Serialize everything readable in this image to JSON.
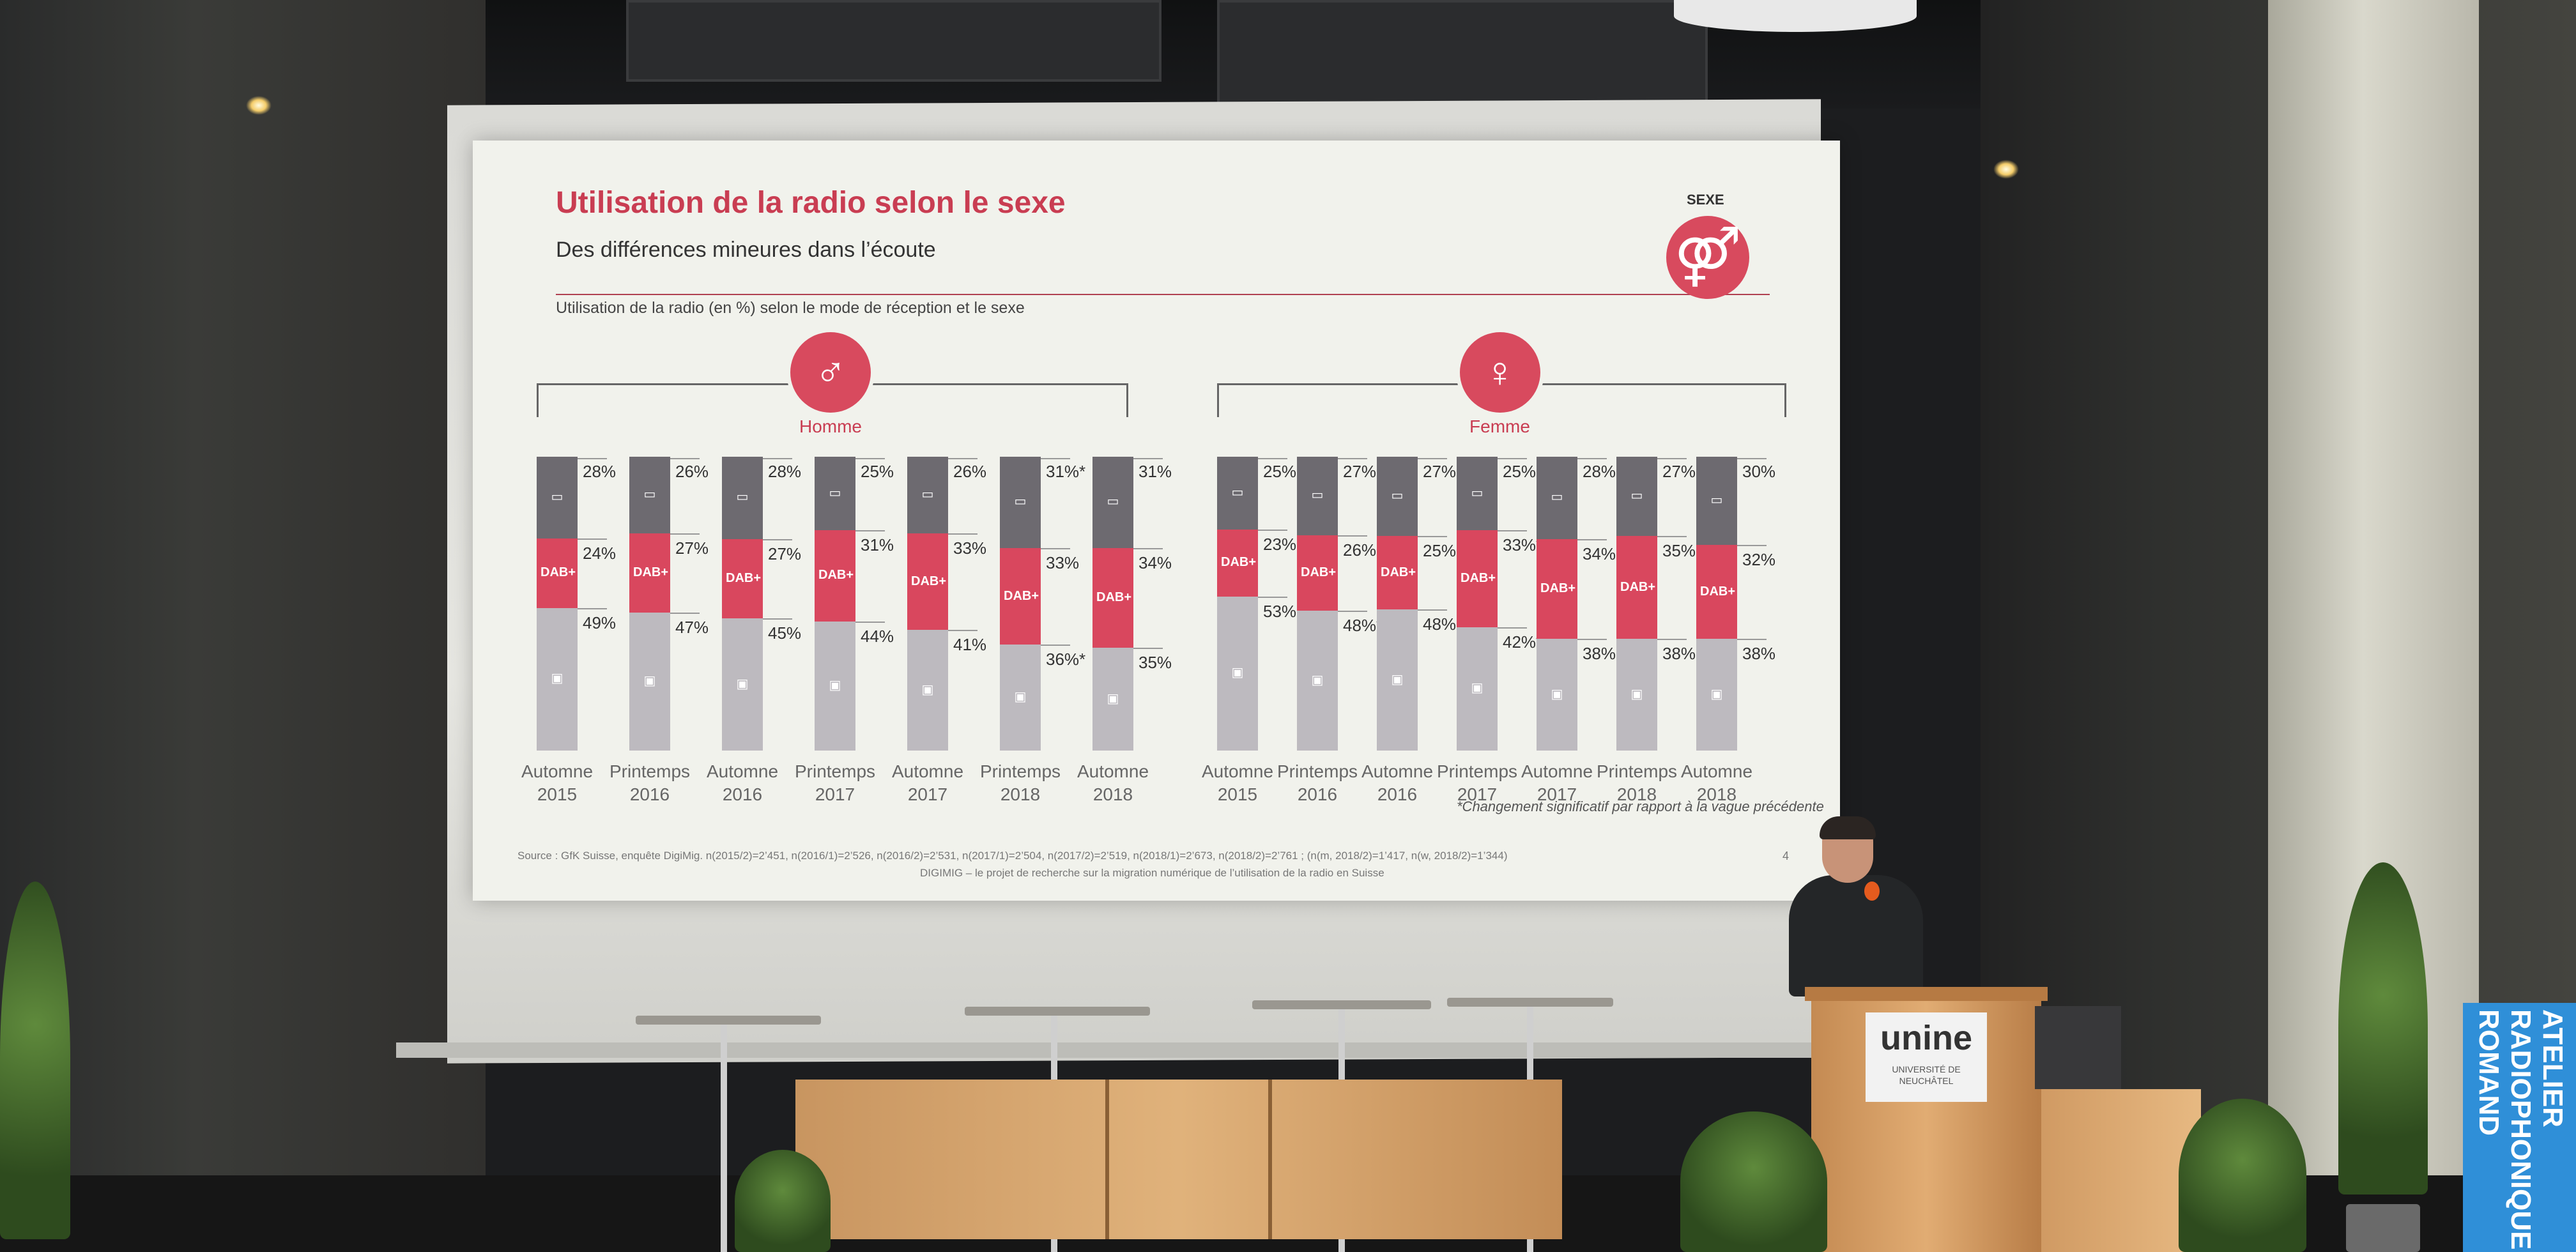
{
  "slide": {
    "title": "Utilisation de la radio selon le sexe",
    "subtitle": "Des différences mineures dans l’écoute",
    "caption": "Utilisation de la radio (en %) selon le mode de réception et le sexe",
    "sexe_label": "SEXE",
    "sexe_icon": "⚤",
    "footnote": "*Changement significatif par rapport à la vague précédente",
    "source": "Source : GfK Suisse, enquête DigiMig. n(2015/2)=2’451, n(2016/1)=2’526, n(2016/2)=2’531, n(2017/1)=2’504, n(2017/2)=2’519, n(2018/1)=2’673, n(2018/2)=2’761 ; (n(m, 2018/2)=1’417, n(w, 2018/2)=1’344)",
    "digimig": "DIGIMIG – le projet de recherche sur la migration numérique de l’utilisation de la radio en Suisse",
    "page_number": "4",
    "segment_labels": {
      "internet": "Internet/Digital",
      "dab": "DAB+",
      "analog": "Analog/UKW"
    },
    "colors": {
      "accent": "#c93d52",
      "internet": "#6d6a70",
      "dab": "#d9475e",
      "analog": "#bdbabf"
    }
  },
  "groups": [
    {
      "label": "Homme",
      "icon": "man-icon",
      "glyph": "♂",
      "bars": [
        {
          "cat1": "Automne",
          "cat2": "2015",
          "internet": "28%",
          "dab": "24%",
          "analog": "49%",
          "v": [
            28,
            24,
            49
          ]
        },
        {
          "cat1": "Printemps",
          "cat2": "2016",
          "internet": "26%",
          "dab": "27%",
          "analog": "47%",
          "v": [
            26,
            27,
            47
          ]
        },
        {
          "cat1": "Automne",
          "cat2": "2016",
          "internet": "28%",
          "dab": "27%",
          "analog": "45%",
          "v": [
            28,
            27,
            45
          ]
        },
        {
          "cat1": "Printemps",
          "cat2": "2017",
          "internet": "25%",
          "dab": "31%",
          "analog": "44%",
          "v": [
            25,
            31,
            44
          ]
        },
        {
          "cat1": "Automne",
          "cat2": "2017",
          "internet": "26%",
          "dab": "33%",
          "analog": "41%",
          "v": [
            26,
            33,
            41
          ]
        },
        {
          "cat1": "Printemps",
          "cat2": "2018",
          "internet": "31%*",
          "dab": "33%",
          "analog": "36%*",
          "v": [
            31,
            33,
            36
          ]
        },
        {
          "cat1": "Automne",
          "cat2": "2018",
          "internet": "31%",
          "dab": "34%",
          "analog": "35%",
          "v": [
            31,
            34,
            35
          ]
        }
      ]
    },
    {
      "label": "Femme",
      "icon": "woman-icon",
      "glyph": "♀",
      "bars": [
        {
          "cat1": "Automne",
          "cat2": "2015",
          "internet": "25%",
          "dab": "23%",
          "analog": "53%",
          "v": [
            25,
            23,
            53
          ]
        },
        {
          "cat1": "Printemps",
          "cat2": "2016",
          "internet": "27%",
          "dab": "26%",
          "analog": "48%*",
          "v": [
            27,
            26,
            48
          ]
        },
        {
          "cat1": "Automne",
          "cat2": "2016",
          "internet": "27%",
          "dab": "25%",
          "analog": "48%",
          "v": [
            27,
            25,
            48
          ]
        },
        {
          "cat1": "Printemps",
          "cat2": "2017",
          "internet": "25%",
          "dab": "33%*",
          "analog": "42%*",
          "v": [
            25,
            33,
            42
          ]
        },
        {
          "cat1": "Automne",
          "cat2": "2017",
          "internet": "28%",
          "dab": "34%",
          "analog": "38%",
          "v": [
            28,
            34,
            38
          ]
        },
        {
          "cat1": "Printemps",
          "cat2": "2018",
          "internet": "27%",
          "dab": "35%",
          "analog": "38%",
          "v": [
            27,
            35,
            38
          ]
        },
        {
          "cat1": "Automne",
          "cat2": "2018",
          "internet": "30%",
          "dab": "32%",
          "analog": "38%",
          "v": [
            30,
            32,
            38
          ]
        }
      ]
    }
  ],
  "stage": {
    "podium_logo": "unine",
    "podium_sub": "UNIVERSITÉ DE NEUCHÂTEL",
    "banner_text": "ATELIER RADIOPHONIQUE ROMAND"
  }
}
